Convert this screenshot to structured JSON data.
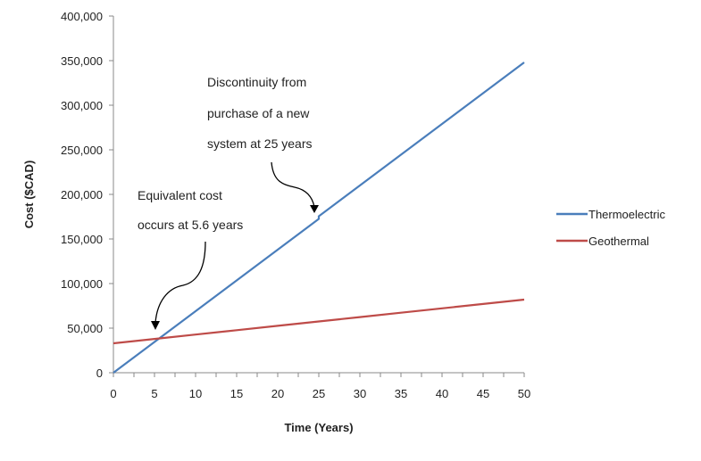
{
  "chart_data": {
    "type": "line",
    "title": "",
    "xlabel": "Time (Years)",
    "ylabel": "Cost ($CAD)",
    "xlim": [
      0,
      50
    ],
    "ylim": [
      0,
      400000
    ],
    "x_ticks": [
      "0",
      "5",
      "10",
      "15",
      "20",
      "25",
      "30",
      "35",
      "40",
      "45",
      "50"
    ],
    "y_ticks": [
      "0",
      "50,000",
      "100,000",
      "150,000",
      "200,000",
      "250,000",
      "300,000",
      "350,000",
      "400,000"
    ],
    "grid": false,
    "legend_position": "right",
    "x": [
      0,
      5,
      10,
      15,
      20,
      25,
      25,
      30,
      35,
      40,
      45,
      50
    ],
    "series": [
      {
        "name": "Thermoelectric",
        "color": "#4a7ebb",
        "values": [
          0,
          34500,
          69000,
          103500,
          138000,
          172500,
          175500,
          210000,
          244500,
          279000,
          313500,
          348000
        ]
      },
      {
        "name": "Geothermal",
        "color": "#be4b48",
        "values": [
          33000,
          37900,
          42800,
          47700,
          52600,
          57500,
          57500,
          62400,
          67300,
          72200,
          77100,
          82000
        ]
      }
    ],
    "annotations": [
      {
        "lines": [
          "Discontinuity from",
          "purchase of a new",
          "system at 25 years"
        ],
        "points_to_x": 25
      },
      {
        "lines": [
          "Equivalent cost",
          "occurs at 5.6 years"
        ],
        "points_to_x": 5.6
      }
    ]
  }
}
